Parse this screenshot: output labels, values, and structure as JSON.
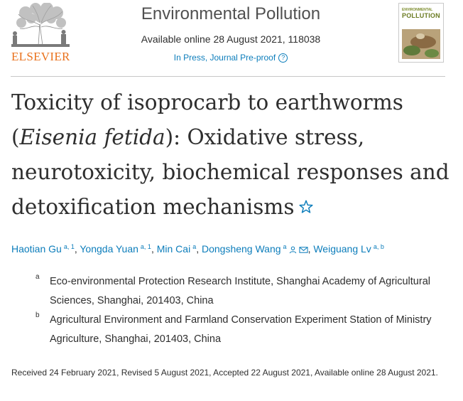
{
  "header": {
    "publisher": "ELSEVIER",
    "journal_name": "Environmental Pollution",
    "availability": "Available online 28 August 2021, 118038",
    "status": "In Press, Journal Pre-proof",
    "help_glyph": "?",
    "cover_line1": "ENVIRONMENTAL",
    "cover_line2": "POLLUTION",
    "colors": {
      "publisher": "#e9711c",
      "link": "#0c7dbb"
    }
  },
  "article": {
    "title_part1": "Toxicity of isoprocarb to earthworms (",
    "title_italic": "Eisenia fetida",
    "title_part2": "): Oxidative stress, neurotoxicity, biochemical responses and detoxification mechanisms",
    "title_icon": "star-outline-icon"
  },
  "authors": [
    {
      "name": "Haotian Gu",
      "sup": "a, 1"
    },
    {
      "name": "Yongda Yuan",
      "sup": "a, 1"
    },
    {
      "name": "Min Cai",
      "sup": "a"
    },
    {
      "name": "Dongsheng Wang",
      "sup": "a",
      "icons": [
        "person-icon",
        "email-icon"
      ]
    },
    {
      "name": "Weiguang Lv",
      "sup": "a, b"
    }
  ],
  "author_separator": ",",
  "affiliations": [
    {
      "label": "a",
      "text": "Eco-environmental Protection Research Institute, Shanghai Academy of Agricultural Sciences, Shanghai, 201403, China"
    },
    {
      "label": "b",
      "text": "Agricultural Environment and Farmland Conservation Experiment Station of Ministry Agriculture, Shanghai, 201403, China"
    }
  ],
  "history": "Received 24 February 2021, Revised 5 August 2021, Accepted 22 August 2021, Available online 28 August 2021."
}
